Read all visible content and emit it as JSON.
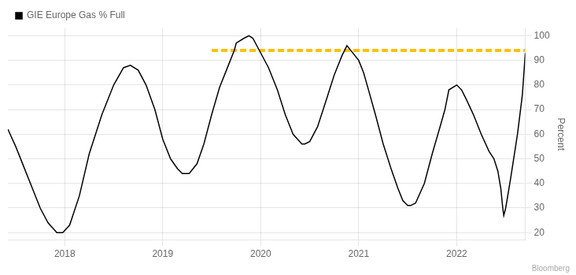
{
  "chart_data": {
    "type": "line",
    "x": [
      2017.42,
      2017.5,
      2017.58,
      2017.67,
      2017.75,
      2017.83,
      2017.92,
      2017.98,
      2018.05,
      2018.15,
      2018.25,
      2018.38,
      2018.5,
      2018.6,
      2018.67,
      2018.75,
      2018.83,
      2018.92,
      2019.0,
      2019.08,
      2019.15,
      2019.2,
      2019.27,
      2019.35,
      2019.42,
      2019.5,
      2019.58,
      2019.67,
      2019.73,
      2019.75,
      2019.83,
      2019.88,
      2019.92,
      2020.0,
      2020.08,
      2020.17,
      2020.25,
      2020.33,
      2020.42,
      2020.45,
      2020.5,
      2020.58,
      2020.67,
      2020.75,
      2020.83,
      2020.88,
      2020.92,
      2021.0,
      2021.05,
      2021.1,
      2021.17,
      2021.25,
      2021.33,
      2021.4,
      2021.45,
      2021.5,
      2021.53,
      2021.58,
      2021.67,
      2021.75,
      2021.83,
      2021.88,
      2021.92,
      2022.0,
      2022.05,
      2022.1,
      2022.17,
      2022.25,
      2022.33,
      2022.38,
      2022.42,
      2022.45,
      2022.47,
      2022.48,
      2022.5,
      2022.55,
      2022.62,
      2022.67,
      2022.7
    ],
    "series": [
      {
        "name": "GIE Europe Gas % Full",
        "color": "#000000",
        "values": [
          62,
          55,
          47,
          38,
          30,
          24,
          20,
          20,
          23,
          35,
          52,
          68,
          80,
          87,
          88,
          86,
          80,
          70,
          58,
          50,
          46,
          44,
          44,
          48,
          56,
          68,
          79,
          88,
          94,
          97,
          99,
          100,
          99,
          93,
          87,
          78,
          68,
          60,
          56,
          56,
          57,
          63,
          74,
          84,
          92,
          96,
          94,
          90,
          85,
          78,
          68,
          56,
          46,
          38,
          33,
          31,
          31,
          32,
          40,
          52,
          63,
          70,
          78,
          80,
          78,
          74,
          68,
          60,
          53,
          50,
          45,
          38,
          30,
          27,
          30,
          42,
          60,
          76,
          93
        ]
      }
    ],
    "ylabel": "Percent",
    "xlim": [
      2017.42,
      2022.7
    ],
    "xticks": [
      2018,
      2019,
      2020,
      2021,
      2022
    ],
    "ylim": [
      17,
      103
    ],
    "yticks": [
      20,
      30,
      40,
      50,
      60,
      70,
      80,
      90,
      100
    ],
    "grid": true,
    "legend": "upper left",
    "annotations": [
      {
        "type": "hline",
        "y": 94,
        "x": [
          2019.5,
          2022.7
        ],
        "color": "#FFC000",
        "line_style": "dashed"
      },
      {
        "text": "Bloomberg"
      }
    ]
  }
}
